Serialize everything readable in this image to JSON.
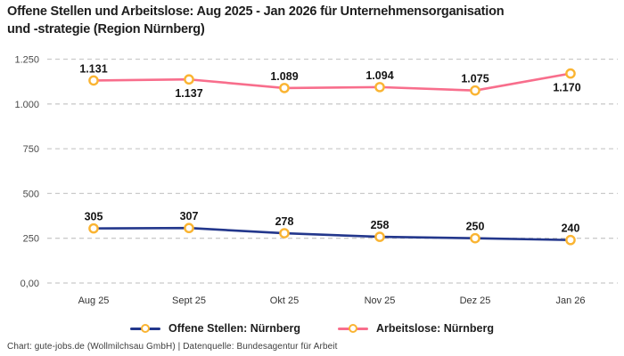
{
  "title_lines": {
    "line1": "Offene Stellen und Arbeitslose: Aug 2025 - Jan 2026 für Unternehmensorganisation",
    "line2": "und -strategie (Region Nürnberg)"
  },
  "footer": "Chart: gute-jobs.de (Wollmilchsau GmbH) | Datenquelle: Bundesagentur für Arbeit",
  "legend": {
    "items": [
      {
        "label": "Offene Stellen: Nürnberg",
        "color": "#23378C"
      },
      {
        "label": "Arbeitslose: Nürnberg",
        "color": "#F86E8C"
      }
    ]
  },
  "colors": {
    "grid": "#CBCBCB",
    "axis_text": "#4a4a4a",
    "data_label": "#141414",
    "marker_stroke": "#FAB432",
    "marker_fill": "#FFFFFF"
  },
  "chart_data": {
    "type": "line",
    "title": "Offene Stellen und Arbeitslose: Aug 2025 - Jan 2026 für Unternehmensorganisation und -strategie (Region Nürnberg)",
    "xlabel": "",
    "ylabel": "",
    "categories": [
      "Aug 25",
      "Sept 25",
      "Okt 25",
      "Nov 25",
      "Dez 25",
      "Jan 26"
    ],
    "series": [
      {
        "name": "Offene Stellen: Nürnberg",
        "color": "#23378C",
        "values": [
          305,
          307,
          278,
          258,
          250,
          240
        ],
        "labels": [
          "305",
          "307",
          "278",
          "258",
          "250",
          "240"
        ],
        "label_below_indices": []
      },
      {
        "name": "Arbeitslose: Nürnberg",
        "color": "#F86E8C",
        "values": [
          1131,
          1137,
          1089,
          1094,
          1075,
          1170
        ],
        "labels": [
          "1.131",
          "1.137",
          "1.089",
          "1.094",
          "1.075",
          "1.170"
        ],
        "label_below_indices": [
          1,
          5
        ]
      }
    ],
    "yticks": [
      {
        "value": 0,
        "label": "0,00"
      },
      {
        "value": 250,
        "label": "250"
      },
      {
        "value": 500,
        "label": "500"
      },
      {
        "value": 750,
        "label": "750"
      },
      {
        "value": 1000,
        "label": "1.000"
      },
      {
        "value": 1250,
        "label": "1.250"
      }
    ],
    "ylim": [
      0,
      1250
    ],
    "grid": "dashed-horizontal",
    "legend_position": "bottom",
    "marker": {
      "shape": "circle",
      "fill": "#FFFFFF",
      "stroke": "#FAB432"
    }
  }
}
